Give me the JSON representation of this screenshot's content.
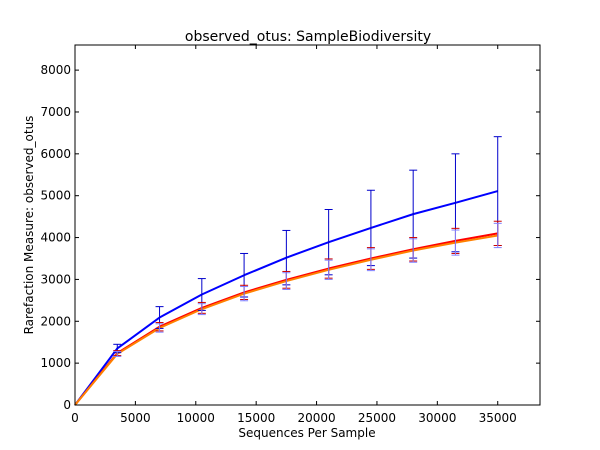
{
  "chart_data": {
    "type": "line",
    "title": "observed_otus: SampleBiodiversity",
    "xlabel": "Sequences Per Sample",
    "ylabel": "Rarefaction Measure: observed_otus",
    "xlim": [
      0,
      38500
    ],
    "ylim": [
      0,
      8600
    ],
    "xticks": [
      0,
      5000,
      10000,
      15000,
      20000,
      25000,
      30000,
      35000
    ],
    "xtick_labels": [
      "0",
      "5000",
      "10000",
      "15000",
      "20000",
      "25000",
      "30000",
      "35000"
    ],
    "yticks": [
      0,
      1000,
      2000,
      3000,
      4000,
      5000,
      6000,
      7000,
      8000
    ],
    "ytick_labels": [
      "0",
      "1000",
      "2000",
      "3000",
      "4000",
      "5000",
      "6000",
      "7000",
      "8000"
    ],
    "grid": false,
    "x": [
      0,
      3500,
      7000,
      10500,
      14000,
      17500,
      21000,
      24500,
      28000,
      31500,
      35000
    ],
    "series": [
      {
        "color": "#0000ff",
        "errorbar_color": "#0000cc",
        "values": [
          0,
          1350,
          2090,
          2640,
          3100,
          3520,
          3890,
          4230,
          4560,
          4830,
          5110
        ],
        "errors": [
          0,
          100,
          260,
          380,
          520,
          650,
          780,
          900,
          1050,
          1170,
          1300
        ]
      },
      {
        "color": "#ff0000",
        "errorbar_color": "#cc0000",
        "values": [
          0,
          1240,
          1870,
          2320,
          2690,
          2990,
          3260,
          3500,
          3720,
          3920,
          4100
        ],
        "errors": [
          0,
          60,
          100,
          130,
          170,
          200,
          230,
          260,
          280,
          300,
          290
        ]
      },
      {
        "color": "#ff8000",
        "errorbar_color": "#8080ff",
        "values": [
          0,
          1220,
          1840,
          2290,
          2660,
          2960,
          3230,
          3470,
          3690,
          3880,
          4050
        ],
        "errors": [
          0,
          60,
          100,
          130,
          170,
          200,
          230,
          260,
          280,
          300,
          290
        ]
      }
    ]
  }
}
